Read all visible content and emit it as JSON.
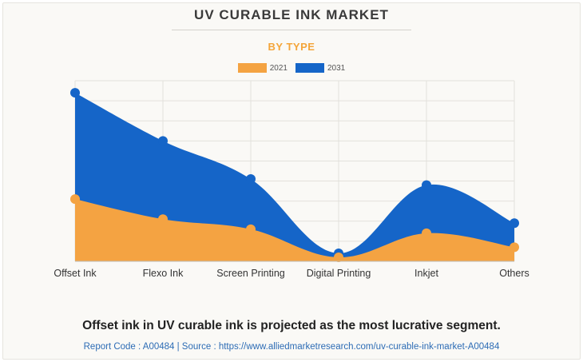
{
  "header": {
    "title": "UV CURABLE INK MARKET",
    "subtitle": "BY TYPE"
  },
  "colors": {
    "series_2021": "#f4a342",
    "series_2031": "#1565c8",
    "grid": "#e3e1dc"
  },
  "chart_data": {
    "type": "area",
    "categories": [
      "Offset Ink",
      "Flexo Ink",
      "Screen Printing",
      "Digital Printing",
      "Inkjet",
      "Others"
    ],
    "series": [
      {
        "name": "2021",
        "values": [
          31,
          21,
          16,
          2,
          14,
          7
        ]
      },
      {
        "name": "2031",
        "values": [
          84,
          60,
          41,
          4,
          38,
          19
        ]
      }
    ],
    "ylim": [
      0,
      90
    ],
    "grid": true,
    "legend_position": "top-center",
    "xlabel": "",
    "ylabel": ""
  },
  "footer": {
    "headline": "Offset ink in UV curable ink is projected as the most lucrative segment.",
    "source": "Report Code : A00484  |  Source : https://www.alliedmarketresearch.com/uv-curable-ink-market-A00484"
  }
}
